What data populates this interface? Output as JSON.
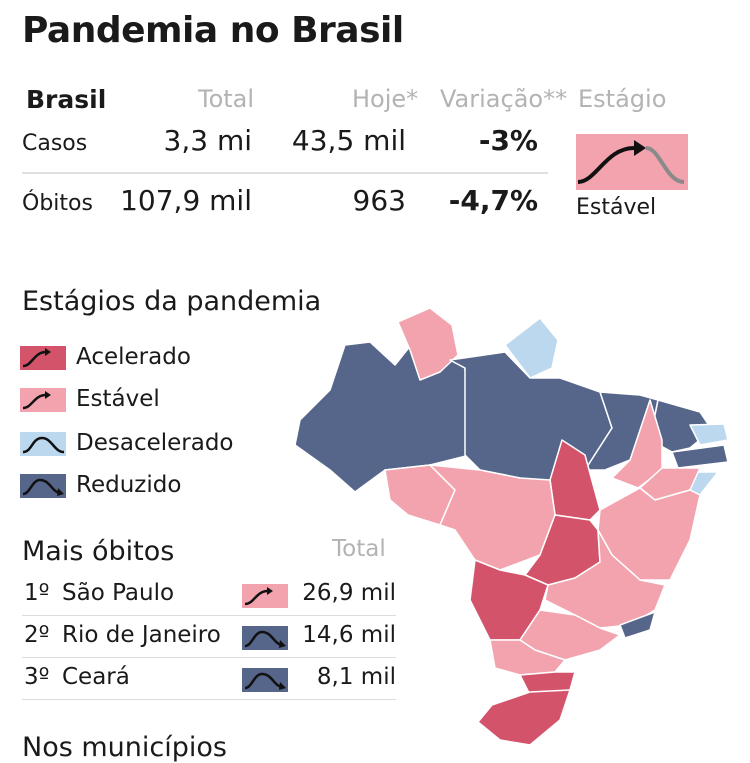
{
  "title": "Pandemia no Brasil",
  "summary": {
    "region_label": "Brasil",
    "col_total": "Total",
    "col_today": "Hoje*",
    "col_variation": "Variação**",
    "col_stage": "Estágio",
    "rows": [
      {
        "label": "Casos",
        "total": "3,3 mi",
        "today": "43,5 mil",
        "variation": "-3%"
      },
      {
        "label": "Óbitos",
        "total": "107,9 mil",
        "today": "963",
        "variation": "-4,7%"
      }
    ],
    "stage_label": "Estável"
  },
  "stages": {
    "title": "Estágios da pandemia",
    "items": [
      {
        "label": "Acelerado",
        "color": "#d3546a"
      },
      {
        "label": "Estável",
        "color": "#f2a3ae"
      },
      {
        "label": "Desacelerado",
        "color": "#bcd8ef"
      },
      {
        "label": "Reduzido",
        "color": "#56658a"
      }
    ]
  },
  "deaths": {
    "title": "Mais óbitos",
    "total_label": "Total",
    "rows": [
      {
        "pos": "1º",
        "name": "São Paulo",
        "total": "26,9 mil",
        "stage": "Estável"
      },
      {
        "pos": "2º",
        "name": "Rio de Janeiro",
        "total": "14,6 mil",
        "stage": "Reduzido"
      },
      {
        "pos": "3º",
        "name": "Ceará",
        "total": "8,1 mil",
        "stage": "Reduzido"
      }
    ]
  },
  "next_section_title": "Nos municípios",
  "colors": {
    "acelerado": "#d3546a",
    "estavel": "#f2a3ae",
    "desacelerado": "#bcd8ef",
    "reduzido": "#56658a"
  }
}
